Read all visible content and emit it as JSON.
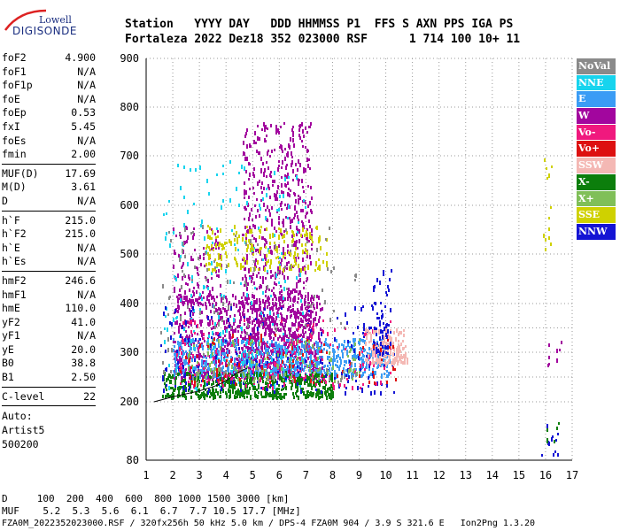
{
  "logo": {
    "top": "Lowell",
    "main": "DIGISONDE"
  },
  "header": {
    "line1": "Station   YYYY DAY   DDD HHMMSS P1  FFS S AXN PPS IGA PS",
    "line2": "Fortaleza 2022 Dez18 352 023000 RSF      1 714 100 10+ 11"
  },
  "params": [
    [
      {
        "k": "foF2",
        "v": "4.900"
      },
      {
        "k": "foF1",
        "v": "N/A"
      },
      {
        "k": "foF1p",
        "v": "N/A"
      },
      {
        "k": "foE",
        "v": "N/A"
      },
      {
        "k": "foEp",
        "v": "0.53"
      },
      {
        "k": "fxI",
        "v": "5.45"
      },
      {
        "k": "foEs",
        "v": "N/A"
      },
      {
        "k": "fmin",
        "v": "2.00"
      }
    ],
    [
      {
        "k": "MUF(D)",
        "v": "17.69"
      },
      {
        "k": "M(D)",
        "v": "3.61"
      },
      {
        "k": "D",
        "v": "N/A"
      }
    ],
    [
      {
        "k": "h`F",
        "v": "215.0"
      },
      {
        "k": "h`F2",
        "v": "215.0"
      },
      {
        "k": "h`E",
        "v": "N/A"
      },
      {
        "k": "h`Es",
        "v": "N/A"
      }
    ],
    [
      {
        "k": "hmF2",
        "v": "246.6"
      },
      {
        "k": "hmF1",
        "v": "N/A"
      },
      {
        "k": "hmE",
        "v": "110.0"
      },
      {
        "k": "yF2",
        "v": "41.0"
      },
      {
        "k": "yF1",
        "v": "N/A"
      },
      {
        "k": "yE",
        "v": "20.0"
      },
      {
        "k": "B0",
        "v": "38.8"
      },
      {
        "k": "B1",
        "v": "2.50"
      }
    ],
    [
      {
        "k": "C-level",
        "v": "22"
      }
    ]
  ],
  "auto": {
    "l1": "Auto:",
    "l2": "Artist5",
    "l3": "500200"
  },
  "legend": [
    {
      "label": "NoVal",
      "color": "#8a8a8a"
    },
    {
      "label": "NNE",
      "color": "#17d4ee"
    },
    {
      "label": "E",
      "color": "#3a9cf5"
    },
    {
      "label": "W",
      "color": "#a2069e"
    },
    {
      "label": "Vo-",
      "color": "#f0197e"
    },
    {
      "label": "Vo+",
      "color": "#dd1010"
    },
    {
      "label": "SSW",
      "color": "#f4b8b4"
    },
    {
      "label": "X-",
      "color": "#0c7e0c"
    },
    {
      "label": "X+",
      "color": "#80bf58"
    },
    {
      "label": "SSE",
      "color": "#cfd100"
    },
    {
      "label": "NNW",
      "color": "#1414d4"
    }
  ],
  "footer": {
    "d_line": "D     100  200  400  600  800 1000 1500 3000 [km]",
    "muf_line": "MUF    5.2  5.3  5.6  6.1  6.7  7.7 10.5 17.7 [MHz]",
    "file_line": "FZA0M_2022352023000.RSF / 320fx256h 50 kHz 5.0 km / DPS-4 FZA0M 904 / 3.9 S 321.6 E   Ion2Png 1.3.20"
  },
  "chart_data": {
    "type": "scatter",
    "xlim": [
      1,
      17
    ],
    "ylim": [
      80,
      900
    ],
    "x_ticks": [
      "1",
      "2",
      "3",
      "4",
      "5",
      "6",
      "7",
      "8",
      "9",
      "10",
      "11",
      "12",
      "13",
      "14",
      "15",
      "16",
      "17"
    ],
    "y_ticks": [
      "80",
      "200",
      "300",
      "400",
      "500",
      "600",
      "700",
      "800",
      "900"
    ],
    "y_scale": "nonlinear (ionogram virtual height)",
    "grid": true,
    "clouds": [
      {
        "series": "W",
        "x": [
          2.0,
          7.6
        ],
        "y": [
          250,
          420
        ],
        "n": 900
      },
      {
        "series": "W",
        "x": [
          4.6,
          7.2
        ],
        "y": [
          300,
          770
        ],
        "n": 700
      },
      {
        "series": "W",
        "x": [
          2.0,
          3.8
        ],
        "y": [
          400,
          560
        ],
        "n": 120
      },
      {
        "series": "E",
        "x": [
          2.0,
          10.2
        ],
        "y": [
          255,
          330
        ],
        "n": 700
      },
      {
        "series": "NNE",
        "x": [
          1.6,
          7.0
        ],
        "y": [
          230,
          700
        ],
        "n": 220
      },
      {
        "series": "X-",
        "x": [
          1.6,
          8.0
        ],
        "y": [
          212,
          262
        ],
        "n": 500
      },
      {
        "series": "SSE",
        "x": [
          3.2,
          7.8
        ],
        "y": [
          470,
          560
        ],
        "n": 200
      },
      {
        "series": "NNW",
        "x": [
          1.5,
          10.3
        ],
        "y": [
          220,
          400
        ],
        "n": 180
      },
      {
        "series": "Vo-",
        "x": [
          2.0,
          10.3
        ],
        "y": [
          230,
          370
        ],
        "n": 160
      },
      {
        "series": "SSW",
        "x": [
          9.2,
          10.8
        ],
        "y": [
          280,
          350
        ],
        "n": 170
      },
      {
        "series": "NNW",
        "x": [
          9.5,
          10.2
        ],
        "y": [
          300,
          470
        ],
        "n": 60
      },
      {
        "series": "X+",
        "x": [
          2.5,
          9.0
        ],
        "y": [
          240,
          330
        ],
        "n": 120
      },
      {
        "series": "Vo+",
        "x": [
          1.8,
          10.4
        ],
        "y": [
          240,
          340
        ],
        "n": 80
      },
      {
        "series": "NoVal",
        "x": [
          1.5,
          9.0
        ],
        "y": [
          240,
          560
        ],
        "n": 140
      },
      {
        "series": "SSE",
        "x": [
          15.9,
          16.2
        ],
        "y": [
          500,
          700
        ],
        "n": 14
      },
      {
        "series": "NNW",
        "x": [
          15.8,
          16.5
        ],
        "y": [
          90,
          160
        ],
        "n": 12
      },
      {
        "series": "W",
        "x": [
          16.0,
          16.6
        ],
        "y": [
          260,
          330
        ],
        "n": 8
      },
      {
        "series": "X-",
        "x": [
          16.0,
          16.5
        ],
        "y": [
          120,
          160
        ],
        "n": 6
      }
    ],
    "trace": {
      "x": [
        1.3,
        2.0,
        3.0,
        3.6,
        4.0,
        4.4,
        4.8
      ],
      "y": [
        200,
        210,
        222,
        232,
        242,
        258,
        268
      ]
    }
  }
}
